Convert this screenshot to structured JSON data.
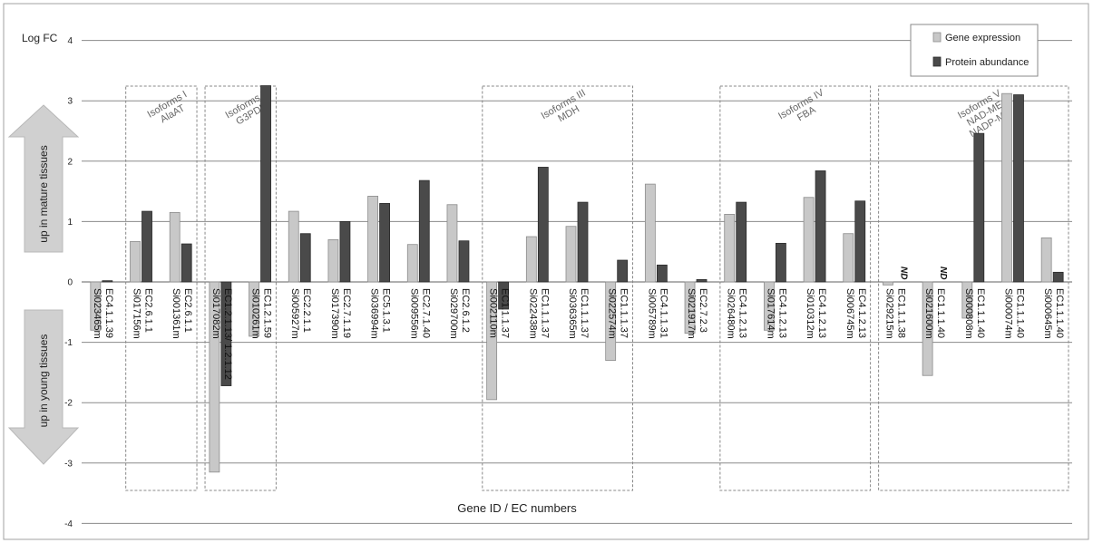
{
  "chart_data": {
    "type": "bar",
    "ylabel": "Log FC",
    "xlabel": "Gene ID / EC numbers",
    "ylim": [
      -4,
      4
    ],
    "yticks": [
      4,
      3,
      2,
      1,
      0,
      -1,
      -2,
      -3,
      -4
    ],
    "grid": true,
    "legend_position": "top-right",
    "colors": {
      "gene_expression": "#c8c8c8",
      "protein_abundance": "#4a4a4a"
    },
    "series": [
      {
        "name": "Gene expression",
        "values": [
          -0.8,
          0.67,
          1.15,
          -3.15,
          -0.9,
          1.17,
          0.7,
          1.42,
          0.62,
          1.28,
          -1.95,
          0.75,
          0.92,
          -1.3,
          1.62,
          -0.85,
          1.12,
          -0.8,
          1.4,
          0.8,
          -0.05,
          -1.55,
          -0.6,
          3.12,
          0.73
        ]
      },
      {
        "name": "Protein abundance",
        "values": [
          0.02,
          1.17,
          0.63,
          -1.72,
          3.25,
          0.8,
          1.0,
          1.3,
          1.68,
          0.68,
          -0.45,
          1.9,
          1.32,
          0.36,
          0.28,
          0.04,
          1.32,
          0.64,
          1.84,
          1.34,
          null,
          null,
          2.46,
          3.1,
          0.16
        ]
      }
    ],
    "categories": [
      {
        "gene": "Si023465m",
        "ec": "EC4.1.1.39"
      },
      {
        "gene": "Si017156m",
        "ec": "EC2.6.1.1"
      },
      {
        "gene": "Si001361m",
        "ec": "EC2.6.1.1"
      },
      {
        "gene": "Si017082m",
        "ec": "EC1.2.1.13/ 1.2.1.12"
      },
      {
        "gene": "Si010261m",
        "ec": "EC1.2.1.59"
      },
      {
        "gene": "Si005927m",
        "ec": "EC2.2.1.1"
      },
      {
        "gene": "Si017390m",
        "ec": "EC2.7.1.19"
      },
      {
        "gene": "Si036994m",
        "ec": "EC5.1.3.1"
      },
      {
        "gene": "Si009556m",
        "ec": "EC2.7.1.40"
      },
      {
        "gene": "Si029700m",
        "ec": "EC2.6.1.2"
      },
      {
        "gene": "Si002110m",
        "ec": "EC1.1.1.37"
      },
      {
        "gene": "Si022438m",
        "ec": "EC1.1.1.37"
      },
      {
        "gene": "Si036365m",
        "ec": "EC1.1.1.37"
      },
      {
        "gene": "Si022574m",
        "ec": "EC1.1.1.37"
      },
      {
        "gene": "Si005789m",
        "ec": "EC4.1.1.31"
      },
      {
        "gene": "Si021917m",
        "ec": "EC2.7.2.3"
      },
      {
        "gene": "Si026480m",
        "ec": "EC4.1.2.13"
      },
      {
        "gene": "Si017614m",
        "ec": "EC4.1.2.13"
      },
      {
        "gene": "Si010312m",
        "ec": "EC4.1.2.13"
      },
      {
        "gene": "Si006745m",
        "ec": "EC4.1.2.13"
      },
      {
        "gene": "Si029215m",
        "ec": "EC1.1.1.38"
      },
      {
        "gene": "Si021600m",
        "ec": "EC1.1.1.40"
      },
      {
        "gene": "Si000808m",
        "ec": "EC1.1.1.40"
      },
      {
        "gene": "Si000074m",
        "ec": "EC1.1.1.40"
      },
      {
        "gene": "Si000645m",
        "ec": "EC1.1.1.40"
      }
    ],
    "nd_labels": [
      {
        "index": 20,
        "text": "ND"
      },
      {
        "index": 21,
        "text": "ND"
      }
    ],
    "isoform_groups": [
      {
        "from": 1,
        "to": 2,
        "lines": [
          "Isoforms I",
          "AlaAT"
        ]
      },
      {
        "from": 3,
        "to": 4,
        "lines": [
          "Isoforms II",
          "G3PDH"
        ]
      },
      {
        "from": 10,
        "to": 13,
        "lines": [
          "Isoforms III",
          "MDH"
        ]
      },
      {
        "from": 16,
        "to": 19,
        "lines": [
          "Isoforms IV",
          "FBA"
        ]
      },
      {
        "from": 20,
        "to": 24,
        "lines": [
          "Isoforms V",
          "NAD-ME",
          "NADP-ME"
        ]
      }
    ],
    "arrows": {
      "up": "up in mature tissues",
      "down": "up in young tissues"
    }
  }
}
